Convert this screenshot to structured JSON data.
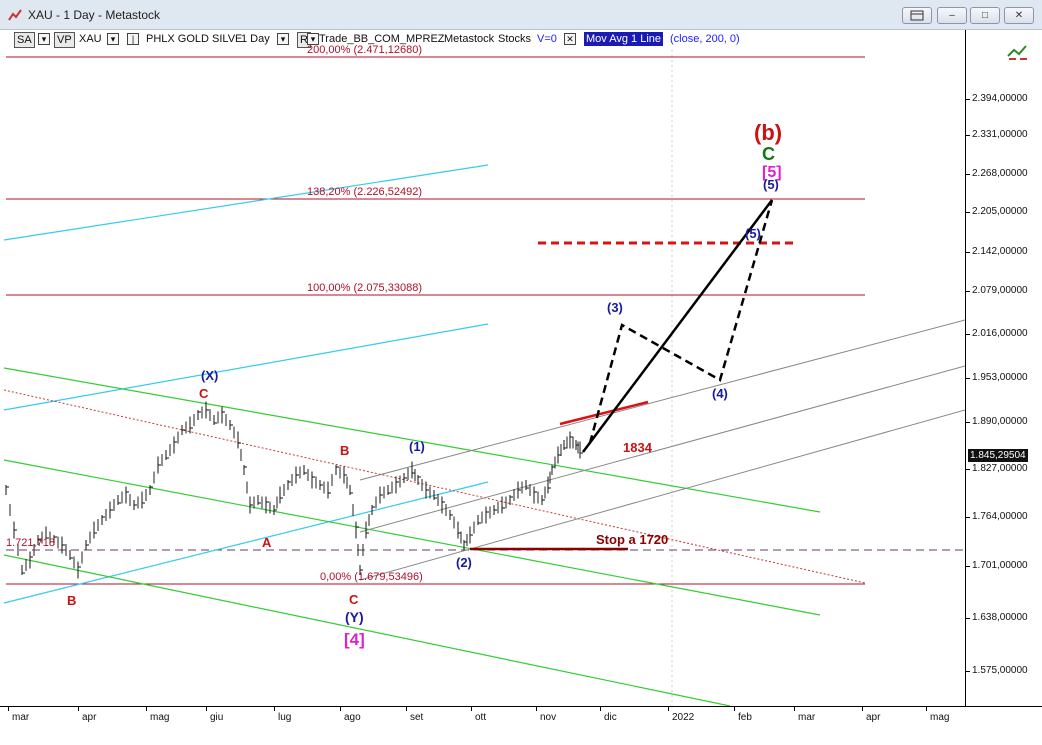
{
  "window": {
    "title": "XAU - 1 Day - Metastock",
    "btn_restore_icon": "restore-icon",
    "btn_min_label": "–",
    "btn_max_label": "□",
    "btn_close_label": "✕"
  },
  "toolbar": {
    "sa": "SA",
    "vp": "VP",
    "symbol": "XAU",
    "name": "PHLX GOLD SILVE",
    "period": "1 Day",
    "r_box": "R",
    "trade": "Trade_BB_COM_MPREZ",
    "app": "Metastock",
    "stocks": "Stocks",
    "v0": "V=0",
    "indicator": "Mov Avg 1 Line",
    "params": "(close,   200,   0)"
  },
  "price_axis": {
    "labels": [
      "2.394,00000",
      "2.331,00000",
      "2.268,00000",
      "2.205,00000",
      "2.142,00000",
      "2.079,00000",
      "2.016,00000",
      "1.953,00000",
      "1.890,00000",
      "1.827,00000",
      "1.764,00000",
      "1.701,00000",
      "1.638,00000",
      "1.575,00000"
    ],
    "current": "1.845,29504"
  },
  "date_axis": {
    "labels": [
      "mar",
      "apr",
      "mag",
      "giu",
      "lug",
      "ago",
      "set",
      "ott",
      "nov",
      "dic",
      "2022",
      "feb",
      "mar",
      "apr",
      "mag"
    ]
  },
  "fib_levels": {
    "l200": "200,00% (2.471,12680)",
    "l138": "138,20% (2.226,52492)",
    "l100": "100,00% (2.075,33088)",
    "l0": "0,00% (1.679,53496)",
    "left_tag": "1.721,718"
  },
  "annotations": {
    "b_big": "(b)",
    "c_green": "C",
    "five_magenta": "[5]",
    "five_paren": "(5)",
    "five_small": "(5)",
    "three": "(3)",
    "four": "(4)",
    "x": "(X)",
    "c_red_top": "C",
    "b_red_mid": "B",
    "one": "(1)",
    "a_red": "A",
    "two": "(2)",
    "b_red_low": "B",
    "c_red_low": "C",
    "y": "(Y)",
    "four_magenta": "[4]",
    "level_1834": "1834",
    "stop": "Stop a 1720"
  },
  "colors": {
    "fib_line": "#b0102a",
    "cyan": "#33ccee",
    "green": "#33cc33",
    "annotation_red": "#cc1111",
    "annotation_blue": "#1a1aa0",
    "magenta": "#dd22cc",
    "dark_green": "#117711"
  }
}
